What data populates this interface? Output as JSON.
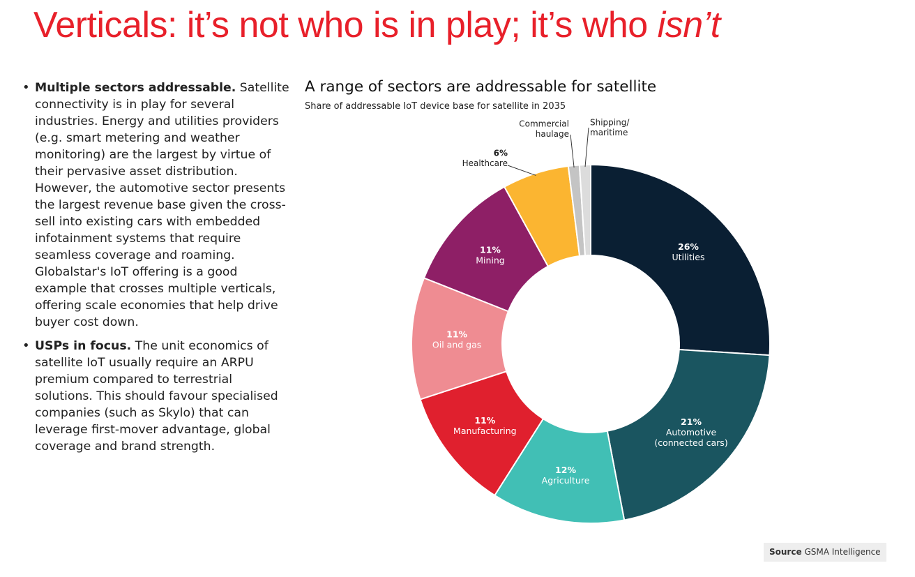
{
  "page": {
    "title_main": "Verticals: it’s not who is in play; it’s who ",
    "title_emphasis": "isn’t"
  },
  "bullets": [
    {
      "heading": "Multiple sectors addressable.",
      "text": " Satellite connectivity is in play for several industries. Energy and utilities providers (e.g. smart metering and weather monitoring) are the largest by virtue of their pervasive asset distribution. However, the automotive sector presents the largest revenue base given the cross-sell into existing cars with embedded infotainment systems that require seamless coverage and roaming. Globalstar's IoT offering is a good example that crosses multiple verticals, offering scale economies that help drive buyer cost down."
    },
    {
      "heading": "USPs in focus.",
      "text": " The unit economics of satellite IoT usually require an ARPU premium compared to terrestrial solutions. This should favour specialised companies (such as Skylo) that can leverage first-mover advantage, global coverage and brand strength."
    }
  ],
  "chart_data": {
    "type": "pie",
    "donut": true,
    "title": "A range of sectors are addressable for satellite",
    "subtitle": "Share of addressable IoT device base for satellite in 2035",
    "unit": "%",
    "slices": [
      {
        "label": "Utilities",
        "value": 26,
        "value_label": "26%",
        "color": "#0a1f33",
        "label_lines": [
          "Utilities"
        ],
        "label_color": "#ffffff",
        "outside": false
      },
      {
        "label": "Automotive (connected cars)",
        "value": 21,
        "value_label": "21%",
        "color": "#1a5560",
        "label_lines": [
          "Automotive",
          "(connected cars)"
        ],
        "label_color": "#ffffff",
        "outside": false
      },
      {
        "label": "Agriculture",
        "value": 12,
        "value_label": "12%",
        "color": "#41bfb5",
        "label_lines": [
          "Agriculture"
        ],
        "label_color": "#ffffff",
        "outside": false
      },
      {
        "label": "Manufacturing",
        "value": 11,
        "value_label": "11%",
        "color": "#e0202e",
        "label_lines": [
          "Manufacturing"
        ],
        "label_color": "#ffffff",
        "outside": false
      },
      {
        "label": "Oil and gas",
        "value": 11,
        "value_label": "11%",
        "color": "#ef8c92",
        "label_lines": [
          "Oil and gas"
        ],
        "label_color": "#ffffff",
        "outside": false
      },
      {
        "label": "Mining",
        "value": 11,
        "value_label": "11%",
        "color": "#8e1f66",
        "label_lines": [
          "Mining"
        ],
        "label_color": "#ffffff",
        "outside": false
      },
      {
        "label": "Healthcare",
        "value": 6,
        "value_label": "6%",
        "color": "#fbb531",
        "label_lines": [
          "Healthcare"
        ],
        "label_color": "#222222",
        "outside": true
      },
      {
        "label": "Commercial haulage",
        "value": 1,
        "value_label": "1%",
        "color": "#c4c4c4",
        "label_lines": [
          "Commercial",
          "haulage"
        ],
        "label_color": "#222222",
        "outside": true
      },
      {
        "label": "Shipping/maritime",
        "value": 1,
        "value_label": "1%",
        "color": "#dcdcdc",
        "label_lines": [
          "Shipping/",
          "maritime"
        ],
        "label_color": "#222222",
        "outside": true
      }
    ],
    "start_angle_deg": 0,
    "direction": "clockwise"
  },
  "source": {
    "label": "Source",
    "text": "GSMA Intelligence"
  }
}
